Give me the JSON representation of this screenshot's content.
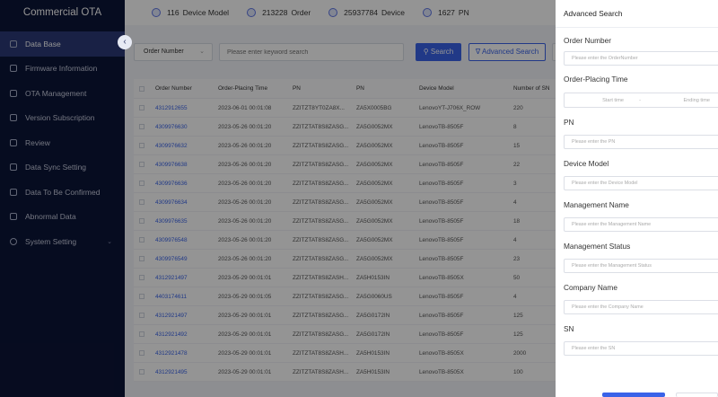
{
  "app": {
    "title": "Commercial OTA"
  },
  "sidebar": {
    "items": [
      {
        "label": "Data Base",
        "active": true
      },
      {
        "label": "Firmware Information"
      },
      {
        "label": "OTA Management"
      },
      {
        "label": "Version Subscription"
      },
      {
        "label": "Review"
      },
      {
        "label": "Data Sync Setting"
      },
      {
        "label": "Data To Be Confirmed"
      },
      {
        "label": "Abnormal Data"
      },
      {
        "label": "System Setting"
      }
    ]
  },
  "stats": [
    {
      "count": "116",
      "label": "Device Model"
    },
    {
      "count": "213228",
      "label": "Order"
    },
    {
      "count": "25937784",
      "label": "Device"
    },
    {
      "count": "1627",
      "label": "PN"
    }
  ],
  "toolbar": {
    "select_value": "Order Number",
    "search_placeholder": "Please enter keyword search",
    "search_label": "Search",
    "advanced_label": "Advanced Search"
  },
  "table": {
    "headers": [
      "Order Number",
      "Order-Placing Time",
      "PN",
      "PN",
      "Device Model",
      "Number of SN"
    ],
    "rows": [
      [
        "4312912655",
        "2023-06-01 00:01:08",
        "ZZITZT8YT0ZA8X...",
        "ZA5X0005BG",
        "LenovoYT-J706X_ROW",
        "220"
      ],
      [
        "4309976630",
        "2023-05-26 00:01:20",
        "ZZITZTAT8S8ZASG...",
        "ZA5G0052MX",
        "LenovoTB-8505F",
        "8"
      ],
      [
        "4309976632",
        "2023-05-26 00:01:20",
        "ZZITZTAT8S8ZASG...",
        "ZA5G0052MX",
        "LenovoTB-8505F",
        "15"
      ],
      [
        "4309976638",
        "2023-05-26 00:01:20",
        "ZZITZTAT8S8ZASG...",
        "ZA5G0052MX",
        "LenovoTB-8505F",
        "22"
      ],
      [
        "4309976636",
        "2023-05-26 00:01:20",
        "ZZITZTAT8S8ZASG...",
        "ZA5G0052MX",
        "LenovoTB-8505F",
        "3"
      ],
      [
        "4309976634",
        "2023-05-26 00:01:20",
        "ZZITZTAT8S8ZASG...",
        "ZA5G0052MX",
        "LenovoTB-8505F",
        "4"
      ],
      [
        "4309976635",
        "2023-05-26 00:01:20",
        "ZZITZTAT8S8ZASG...",
        "ZA5G0052MX",
        "LenovoTB-8505F",
        "18"
      ],
      [
        "4309976548",
        "2023-05-26 00:01:20",
        "ZZITZTAT8S8ZASG...",
        "ZA5G0052MX",
        "LenovoTB-8505F",
        "4"
      ],
      [
        "4309976549",
        "2023-05-26 00:01:20",
        "ZZITZTAT8S8ZASG...",
        "ZA5G0052MX",
        "LenovoTB-8505F",
        "23"
      ],
      [
        "4312921497",
        "2023-05-29 00:01:01",
        "ZZITZTAT8S8ZASH...",
        "ZA5H0153IN",
        "LenovoTB-8505X",
        "50"
      ],
      [
        "4403174611",
        "2023-05-29 00:01:05",
        "ZZITZTAT8S8ZASG...",
        "ZA5G0060US",
        "LenovoTB-8505F",
        "4"
      ],
      [
        "4312921497",
        "2023-05-29 00:01:01",
        "ZZITZTAT8S8ZASG...",
        "ZA5G0172IN",
        "LenovoTB-8505F",
        "125"
      ],
      [
        "4312921492",
        "2023-05-29 00:01:01",
        "ZZITZTAT8S8ZASG...",
        "ZA5G0172IN",
        "LenovoTB-8505F",
        "125"
      ],
      [
        "4312921478",
        "2023-05-29 00:01:01",
        "ZZITZTAT8S8ZASH...",
        "ZA5H0153IN",
        "LenovoTB-8505X",
        "2000"
      ],
      [
        "4312921495",
        "2023-05-29 00:01:01",
        "ZZITZTAT8S8ZASH...",
        "ZA5H0153IN",
        "LenovoTB-8505X",
        "100"
      ]
    ]
  },
  "drawer": {
    "title": "Advanced Search",
    "order_number": {
      "label": "Order Number",
      "placeholder": "Please  enter  the  OrderNumber"
    },
    "order_time": {
      "label": "Order-Placing Time",
      "start": "Start time",
      "sep": "-",
      "end": "Ending time"
    },
    "pn": {
      "label": "PN",
      "placeholder": "Please  enter  the PN"
    },
    "device_model": {
      "label": "Device Model",
      "placeholder": "Please enter the Device Model"
    },
    "management_name": {
      "label": "Management Name",
      "placeholder": "Please enter the Management Name"
    },
    "management_status": {
      "label": "Management Status",
      "placeholder": "Please enter the Management Status"
    },
    "company_name": {
      "label": "Company Name",
      "placeholder": "Please enter the Company Name"
    },
    "sn": {
      "label": "SN",
      "placeholder": "Please enter the SN"
    }
  },
  "colors": {
    "accent": "#3a63e8",
    "sidebar_bg": "#0c1537",
    "sidebar_active": "#2b3a78"
  }
}
